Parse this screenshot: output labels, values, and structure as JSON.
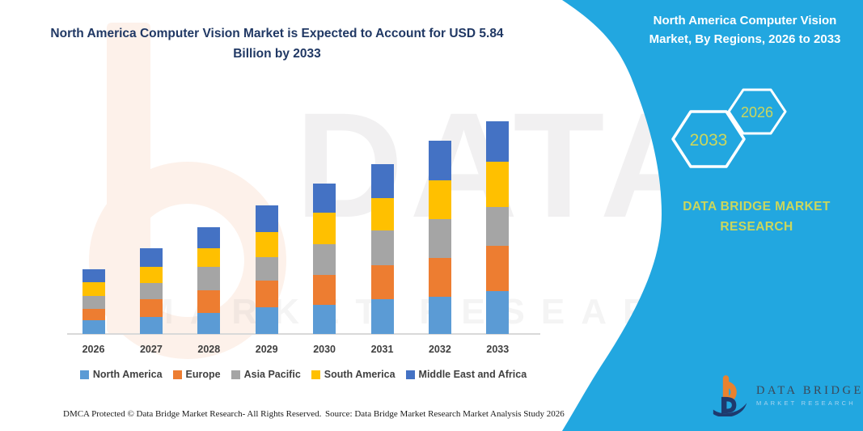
{
  "title": {
    "text": "North America Computer Vision Market is Expected to Account for USD 5.84 Billion by 2033",
    "color": "#203864"
  },
  "right_panel": {
    "title": "North America Computer Vision Market, By Regions, 2026 to 2033",
    "background_color": "#22a7e0",
    "hexagons": [
      {
        "label": "2033"
      },
      {
        "label": "2026"
      }
    ],
    "label_color": "#ccd75c",
    "brand_text": "DATA BRIDGE MARKET RESEARCH"
  },
  "watermark": {
    "line1": "DATA BRIDGE",
    "line2": "MARKET RESEARCH"
  },
  "chart_data": {
    "type": "bar",
    "stacked": true,
    "title": "North America Computer Vision Market is Expected to Account for USD 5.84 Billion by 2033",
    "categories": [
      "2026",
      "2027",
      "2028",
      "2029",
      "2030",
      "2031",
      "2032",
      "2033"
    ],
    "series": [
      {
        "name": "North America",
        "color": "#5B9BD5",
        "values": [
          1.9,
          2.3,
          2.9,
          3.6,
          4.0,
          4.7,
          5.1,
          5.84
        ]
      },
      {
        "name": "Europe",
        "color": "#ED7D31",
        "values": [
          1.5,
          2.4,
          3.1,
          3.7,
          4.1,
          4.7,
          5.3,
          6.2
        ]
      },
      {
        "name": "Asia Pacific",
        "color": "#A5A5A5",
        "values": [
          1.8,
          2.2,
          3.2,
          3.2,
          4.1,
          4.7,
          5.3,
          5.3
        ]
      },
      {
        "name": "South America",
        "color": "#FFC000",
        "values": [
          1.8,
          2.3,
          2.5,
          3.4,
          4.3,
          4.4,
          5.3,
          6.1
        ]
      },
      {
        "name": "Middle East and Africa",
        "color": "#4472C4",
        "values": [
          1.8,
          2.5,
          2.9,
          3.6,
          4.0,
          4.7,
          5.3,
          5.6
        ]
      }
    ],
    "units": "USD Billion (estimated from bar heights; no y-axis shown)",
    "annotation": "North America expected to account for USD 5.84 Billion by 2033",
    "xlabel": "",
    "ylabel": "",
    "grid": false,
    "legend_position": "bottom"
  },
  "footer": {
    "left": "DMCA Protected © Data Bridge Market Research-  All Rights Reserved.",
    "source": "Source: Data Bridge Market Research  Market Analysis Study 2026"
  },
  "logo": {
    "name": "DATA BRIDGE",
    "tagline": "MARKET RESEARCH"
  }
}
